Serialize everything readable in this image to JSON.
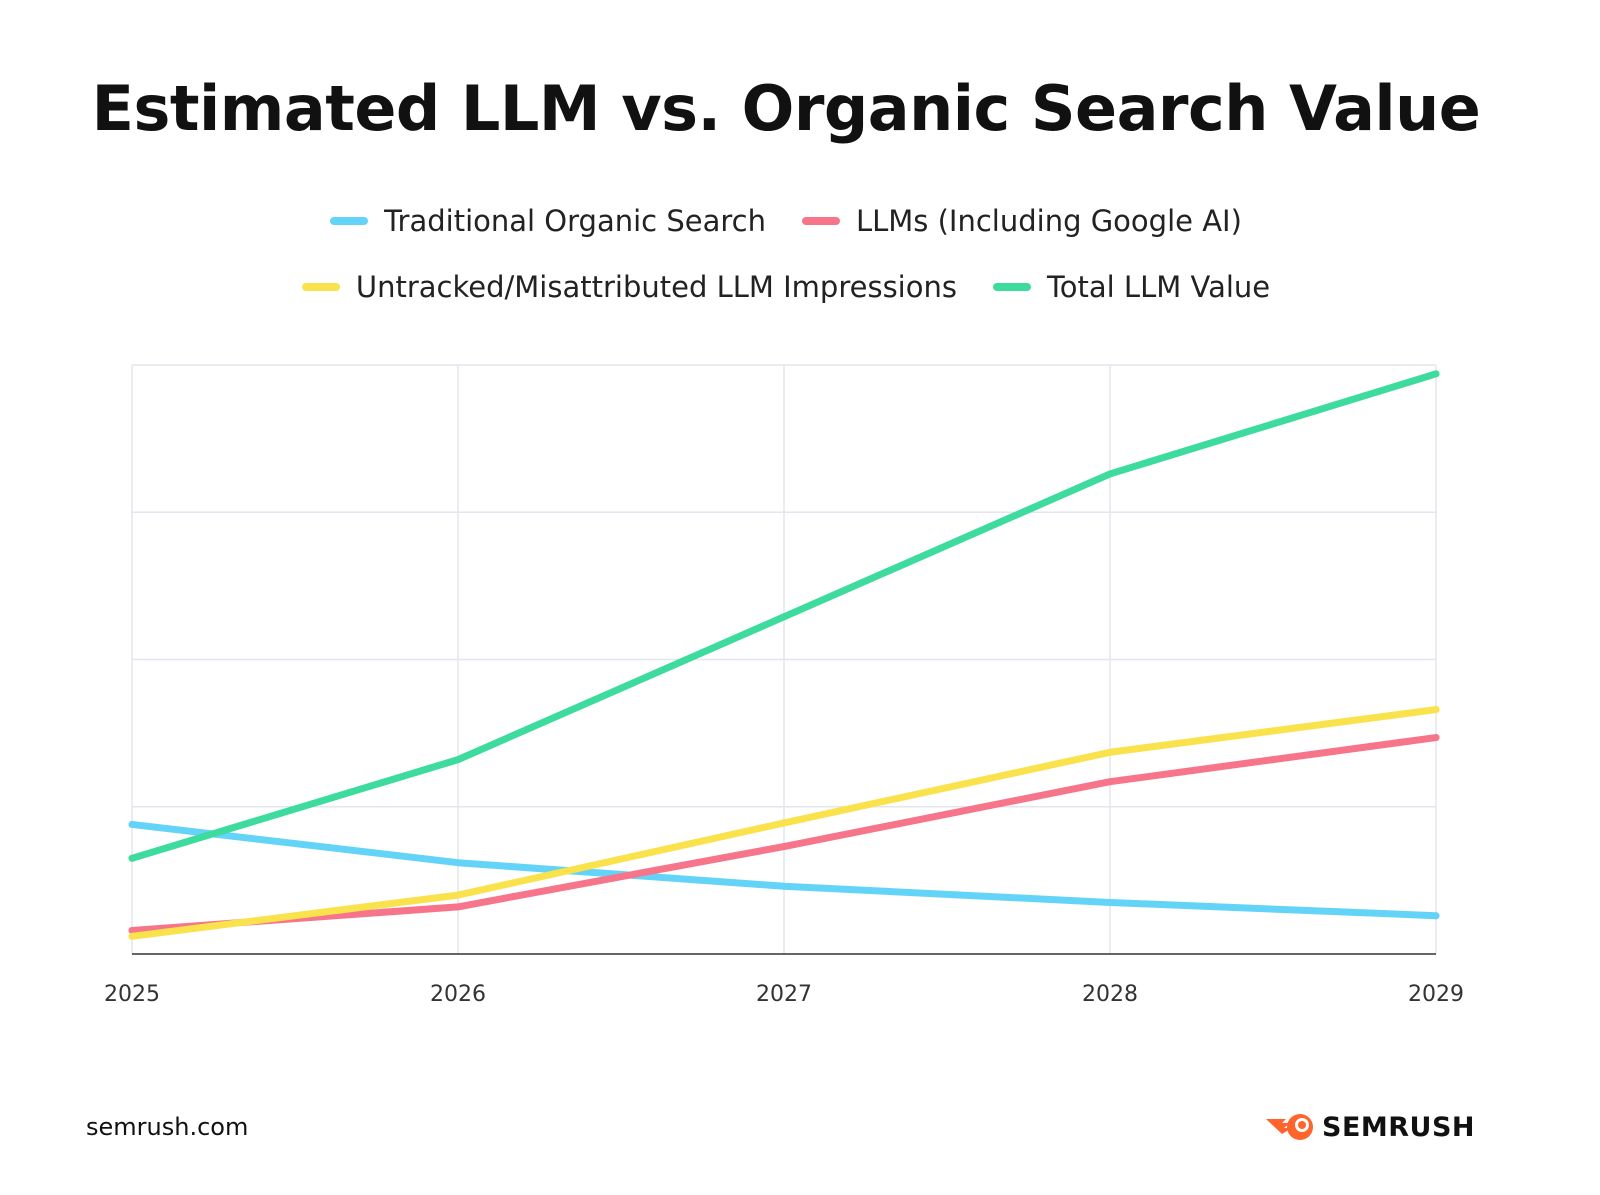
{
  "chart_data": {
    "type": "line",
    "title": "Estimated LLM vs. Organic Search Value",
    "xlabel": "",
    "ylabel": "",
    "categories": [
      "2025",
      "2026",
      "2027",
      "2028",
      "2029"
    ],
    "ylim": [
      0,
      4
    ],
    "y_tick_labels_shown": false,
    "grid": true,
    "legend_placement": "top",
    "series": [
      {
        "name": "Traditional Organic Search",
        "color": "#63D4F7",
        "values": [
          0.88,
          0.62,
          0.46,
          0.35,
          0.26
        ]
      },
      {
        "name": "LLMs (Including Google AI)",
        "color": "#F7758A",
        "values": [
          0.16,
          0.32,
          0.73,
          1.17,
          1.47
        ]
      },
      {
        "name": "Untracked/Misattributed LLM Impressions",
        "color": "#FAE24C",
        "values": [
          0.12,
          0.4,
          0.89,
          1.37,
          1.66
        ]
      },
      {
        "name": "Total LLM Value",
        "color": "#3DDB9E",
        "values": [
          0.65,
          1.32,
          2.29,
          3.26,
          3.94
        ]
      }
    ]
  },
  "footer": {
    "source": "semrush.com",
    "brand": "SEMRUSH",
    "brand_color": "#FF642D"
  }
}
